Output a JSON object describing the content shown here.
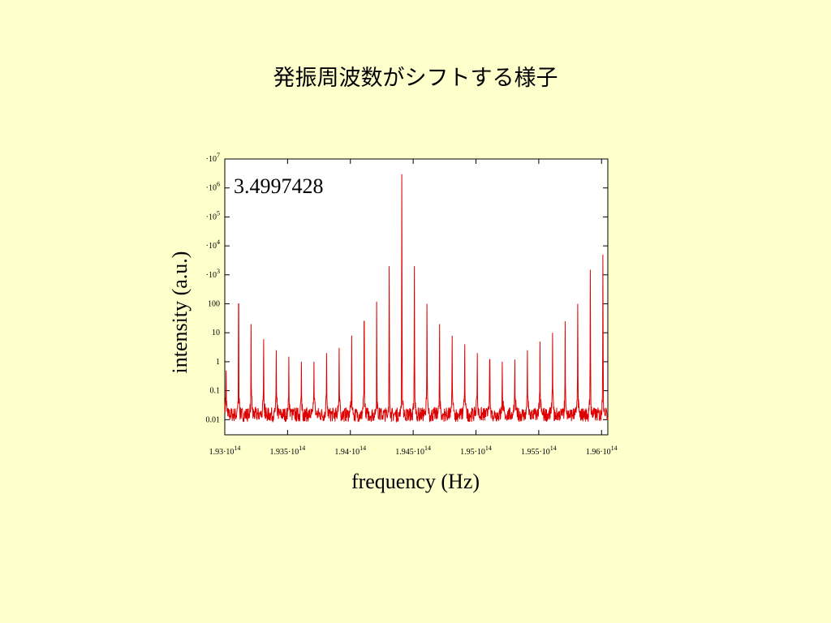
{
  "slide": {
    "title": "発振周波数がシフトする様子"
  },
  "colors": {
    "background": "#ffffcc",
    "plot_bg": "#ffffff",
    "series": "#dd0000"
  },
  "chart_data": {
    "type": "line",
    "xlabel": "frequency (Hz)",
    "ylabel": "intensity (a.u.)",
    "annotation": "3.4997428",
    "xlim": [
      193000000000000.0,
      196050000000000.0
    ],
    "ylim": [
      0.003,
      10000000.0
    ],
    "yscale": "log",
    "grid": false,
    "x_ticks": [
      {
        "value": 193000000000000.0,
        "mantissa": "1.93",
        "times": "·10",
        "exp": "14"
      },
      {
        "value": 193500000000000.0,
        "mantissa": "1.935",
        "times": "·10",
        "exp": "14"
      },
      {
        "value": 194000000000000.0,
        "mantissa": "1.94",
        "times": "·10",
        "exp": "14"
      },
      {
        "value": 194500000000000.0,
        "mantissa": "1.945",
        "times": "·10",
        "exp": "14"
      },
      {
        "value": 195000000000000.0,
        "mantissa": "1.95",
        "times": "·10",
        "exp": "14"
      },
      {
        "value": 195500000000000.0,
        "mantissa": "1.955",
        "times": "·10",
        "exp": "14"
      },
      {
        "value": 196000000000000.0,
        "mantissa": "1.96",
        "times": "·10",
        "exp": "14"
      }
    ],
    "y_ticks": [
      {
        "value": 10000000.0,
        "base": "10",
        "exp": "7"
      },
      {
        "value": 1000000.0,
        "base": "10",
        "exp": "6"
      },
      {
        "value": 100000.0,
        "base": "10",
        "exp": "5"
      },
      {
        "value": 10000.0,
        "base": "10",
        "exp": "4"
      },
      {
        "value": 1000.0,
        "base": "10",
        "exp": "3"
      },
      {
        "value": 100,
        "base": "100",
        "exp": ""
      },
      {
        "value": 10,
        "base": "10",
        "exp": ""
      },
      {
        "value": 1,
        "base": "1",
        "exp": ""
      },
      {
        "value": 0.1,
        "base": "0.1",
        "exp": ""
      },
      {
        "value": 0.01,
        "base": "0.01",
        "exp": ""
      }
    ],
    "baseline_intensity": 0.015,
    "series": [
      {
        "peaks": [
          {
            "x": 193010000000000.0,
            "y": 0.5
          },
          {
            "x": 193110000000000.0,
            "y": 100
          },
          {
            "x": 193210000000000.0,
            "y": 20
          },
          {
            "x": 193310000000000.0,
            "y": 6
          },
          {
            "x": 193410000000000.0,
            "y": 2.5
          },
          {
            "x": 193510000000000.0,
            "y": 1.5
          },
          {
            "x": 193610000000000.0,
            "y": 1.0
          },
          {
            "x": 193710000000000.0,
            "y": 1.0
          },
          {
            "x": 193810000000000.0,
            "y": 2
          },
          {
            "x": 193910000000000.0,
            "y": 3
          },
          {
            "x": 194010000000000.0,
            "y": 8
          },
          {
            "x": 194110000000000.0,
            "y": 25
          },
          {
            "x": 194210000000000.0,
            "y": 120
          },
          {
            "x": 194310000000000.0,
            "y": 2000
          },
          {
            "x": 194410000000000.0,
            "y": 3000000
          },
          {
            "x": 194510000000000.0,
            "y": 2000
          },
          {
            "x": 194610000000000.0,
            "y": 100
          },
          {
            "x": 194710000000000.0,
            "y": 20
          },
          {
            "x": 194810000000000.0,
            "y": 8
          },
          {
            "x": 194910000000000.0,
            "y": 4
          },
          {
            "x": 195010000000000.0,
            "y": 2
          },
          {
            "x": 195110000000000.0,
            "y": 1.2
          },
          {
            "x": 195210000000000.0,
            "y": 1.0
          },
          {
            "x": 195310000000000.0,
            "y": 1.2
          },
          {
            "x": 195410000000000.0,
            "y": 2.5
          },
          {
            "x": 195510000000000.0,
            "y": 5
          },
          {
            "x": 195610000000000.0,
            "y": 10
          },
          {
            "x": 195710000000000.0,
            "y": 25
          },
          {
            "x": 195810000000000.0,
            "y": 100
          },
          {
            "x": 195910000000000.0,
            "y": 1500
          },
          {
            "x": 196010000000000.0,
            "y": 5000
          }
        ]
      }
    ]
  }
}
